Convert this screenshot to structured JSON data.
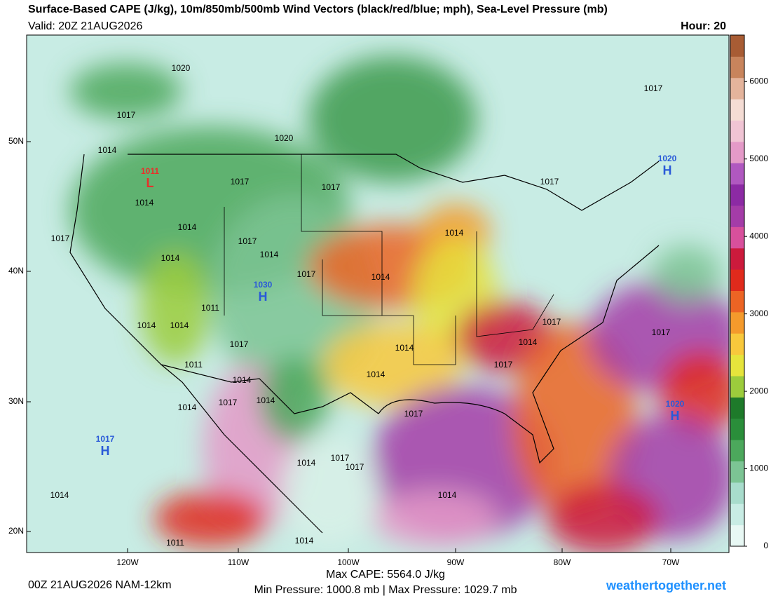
{
  "header": {
    "title": "Surface-Based CAPE (J/kg), 10m/850mb/500mb Wind Vectors (black/red/blue; mph), Sea-Level Pressure (mb)",
    "valid": "Valid: 20Z 21AUG2026",
    "hour": "Hour: 20"
  },
  "map": {
    "lat_labels": [
      "50N",
      "40N",
      "30N",
      "20N"
    ],
    "lon_labels": [
      "120W",
      "110W",
      "100W",
      "90W",
      "80W",
      "70W"
    ],
    "centers": [
      {
        "value": "1030",
        "letter": "H"
      },
      {
        "value": "1020",
        "letter": "H"
      },
      {
        "value": "1020",
        "letter": "H"
      },
      {
        "value": "1017",
        "letter": "H"
      },
      {
        "value": "1011",
        "letter": "L"
      }
    ],
    "isobar_labels": [
      "1020",
      "1017",
      "1014",
      "1020",
      "1017",
      "1014",
      "1017",
      "1014",
      "1017",
      "1014",
      "1017",
      "1014",
      "1017",
      "1014",
      "1011",
      "1014",
      "1014",
      "1017",
      "1014",
      "1014",
      "1011",
      "1014",
      "1017",
      "1014",
      "1017",
      "1017",
      "1014",
      "1017",
      "1014",
      "1014",
      "1017",
      "1017",
      "1014",
      "1017",
      "1014",
      "1011",
      "1014",
      "1014",
      "1017",
      "1017"
    ]
  },
  "colorbar": {
    "range": [
      0,
      6600
    ],
    "ticks": [
      0,
      1000,
      2000,
      3000,
      4000,
      5000,
      6000
    ],
    "colors": [
      "#e8f8f4",
      "#c8ece4",
      "#a8dccc",
      "#7cc494",
      "#4ca85c",
      "#2a8e3a",
      "#1e7a2a",
      "#9ccc3c",
      "#e6e43c",
      "#f8c83c",
      "#f49a2c",
      "#ec6424",
      "#e02a1c",
      "#cc1a3c",
      "#d8509c",
      "#a43ca8",
      "#8c2aa4",
      "#b058c0",
      "#e49ac8",
      "#f0c4d4",
      "#f4dcd4",
      "#e4b49c",
      "#c8845c",
      "#a85c34"
    ]
  },
  "footer": {
    "run": "00Z 21AUG2026 NAM-12km",
    "max_cape": "Max CAPE: 5564.0 J/kg",
    "pressure": "Min Pressure: 1000.8 mb | Max Pressure: 1029.7 mb",
    "site": "weathertogether.net"
  }
}
